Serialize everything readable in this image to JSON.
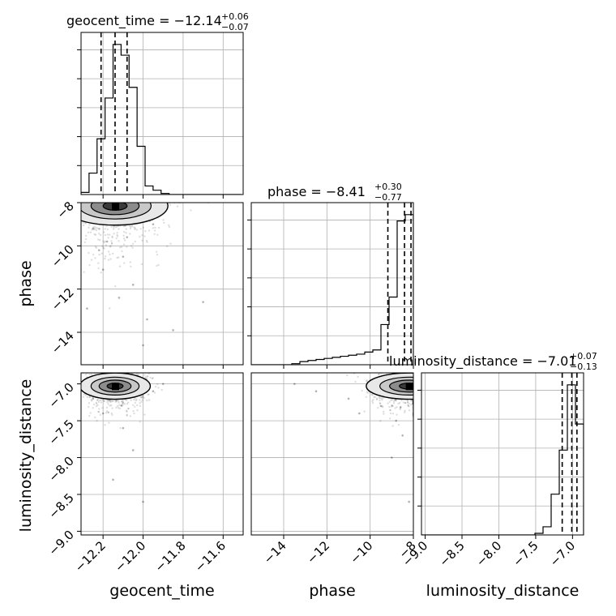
{
  "chart_data": {
    "type": "corner",
    "parameters": [
      "geocent_time",
      "phase",
      "luminosity_distance"
    ],
    "axis_labels": {
      "geocent_time": "geocent_time",
      "phase": "phase",
      "luminosity_distance": "luminosity_distance"
    },
    "ranges": {
      "geocent_time": [
        -12.31,
        -11.5
      ],
      "phase": [
        -15.5,
        -8.0
      ],
      "luminosity_distance": [
        -9.05,
        -6.85
      ]
    },
    "ticks": {
      "geocent_time": {
        "values": [
          -12.2,
          -12.0,
          -11.8,
          -11.6
        ],
        "labels": [
          "−12.2",
          "−12.0",
          "−11.8",
          "−11.6"
        ]
      },
      "phase": {
        "values": [
          -14,
          -12,
          -10,
          -8
        ],
        "labels": [
          "−14",
          "−12",
          "−10",
          "−8"
        ]
      },
      "luminosity_distance": {
        "values": [
          -9.0,
          -8.5,
          -8.0,
          -7.5,
          -7.0
        ],
        "labels": [
          "−9.0",
          "−8.5",
          "−8.0",
          "−7.5",
          "−7.0"
        ]
      }
    },
    "titles": {
      "geocent_time": {
        "text": "geocent_time = −12.14",
        "plus": "+0.06",
        "minus": "−0.07"
      },
      "phase": {
        "text": "phase = −8.41",
        "plus": "+0.30",
        "minus": "−0.77"
      },
      "luminosity_distance": {
        "text": "luminosity_distance = −7.01",
        "plus": "+0.07",
        "minus": "−0.13"
      }
    },
    "quantiles": {
      "geocent_time": [
        -12.21,
        -12.14,
        -12.08
      ],
      "phase": [
        -9.18,
        -8.41,
        -8.11
      ],
      "luminosity_distance": [
        -7.14,
        -7.01,
        -6.94
      ]
    },
    "histograms": {
      "geocent_time": {
        "edges": [
          -12.31,
          -12.27,
          -12.23,
          -12.19,
          -12.15,
          -12.11,
          -12.07,
          -12.03,
          -11.99,
          -11.95,
          -11.91,
          -11.87,
          -11.83,
          -11.79,
          -11.75,
          -11.71,
          -11.67,
          -11.63,
          -11.59,
          -11.55,
          -11.51
        ],
        "counts": [
          2,
          20,
          52,
          90,
          140,
          130,
          100,
          45,
          8,
          4,
          1,
          0,
          0,
          0,
          0,
          0,
          0,
          0,
          0,
          0
        ]
      },
      "phase": {
        "edges": [
          -15.5,
          -15.125,
          -14.75,
          -14.375,
          -14.0,
          -13.625,
          -13.25,
          -12.875,
          -12.5,
          -12.125,
          -11.75,
          -11.375,
          -11.0,
          -10.625,
          -10.25,
          -9.875,
          -9.5,
          -9.125,
          -8.75,
          -8.375,
          -8.0
        ],
        "counts": [
          0,
          0,
          0,
          0,
          0,
          1,
          3,
          4,
          5,
          6,
          7,
          8,
          9,
          10,
          12,
          14,
          38,
          64,
          136,
          142
        ]
      },
      "luminosity_distance": {
        "edges": [
          -9.05,
          -8.94,
          -8.83,
          -8.72,
          -8.61,
          -8.5,
          -8.39,
          -8.28,
          -8.17,
          -8.06,
          -7.95,
          -7.84,
          -7.73,
          -7.62,
          -7.51,
          -7.4,
          -7.29,
          -7.18,
          -7.07,
          -6.96,
          -6.85
        ],
        "counts": [
          0,
          0,
          0,
          0,
          0,
          0,
          0,
          0,
          0,
          0,
          0,
          0,
          0,
          0,
          1,
          5,
          25,
          52,
          92,
          68
        ]
      }
    },
    "joint": {
      "geocent_time|phase": {
        "center": [
          -12.14,
          -8.15
        ],
        "spread": [
          0.12,
          0.9
        ],
        "scatter_sample": [
          [
            -12.25,
            -9.2
          ],
          [
            -12.18,
            -9.8
          ],
          [
            -12.1,
            -10.5
          ],
          [
            -12.2,
            -11.1
          ],
          [
            -12.05,
            -11.8
          ],
          [
            -12.12,
            -12.4
          ],
          [
            -12.28,
            -12.9
          ],
          [
            -11.98,
            -13.4
          ],
          [
            -11.85,
            -13.9
          ],
          [
            -12.0,
            -14.6
          ],
          [
            -11.7,
            -12.6
          ],
          [
            -12.22,
            -10.2
          ],
          [
            -12.08,
            -9.6
          ],
          [
            -11.95,
            -9.0
          ],
          [
            -11.92,
            -8.5
          ]
        ]
      },
      "geocent_time|luminosity_distance": {
        "center": [
          -12.14,
          -7.03
        ],
        "spread": [
          0.08,
          0.18
        ],
        "scatter_sample": [
          [
            -12.2,
            -7.4
          ],
          [
            -12.1,
            -7.6
          ],
          [
            -12.05,
            -7.9
          ],
          [
            -12.15,
            -8.3
          ],
          [
            -12.0,
            -8.6
          ],
          [
            -12.25,
            -7.2
          ],
          [
            -11.95,
            -7.1
          ],
          [
            -11.9,
            -7.0
          ],
          [
            -12.28,
            -7.1
          ]
        ]
      },
      "phase|luminosity_distance": {
        "center": [
          -8.2,
          -7.03
        ],
        "spread": [
          0.9,
          0.18
        ],
        "scatter_sample": [
          [
            -10.0,
            -7.1
          ],
          [
            -11.0,
            -7.2
          ],
          [
            -12.5,
            -7.1
          ],
          [
            -13.5,
            -7.0
          ],
          [
            -9.5,
            -7.3
          ],
          [
            -8.8,
            -7.5
          ],
          [
            -8.5,
            -7.7
          ],
          [
            -9.0,
            -8.0
          ],
          [
            -10.5,
            -7.4
          ],
          [
            -8.2,
            -8.6
          ]
        ]
      }
    }
  }
}
